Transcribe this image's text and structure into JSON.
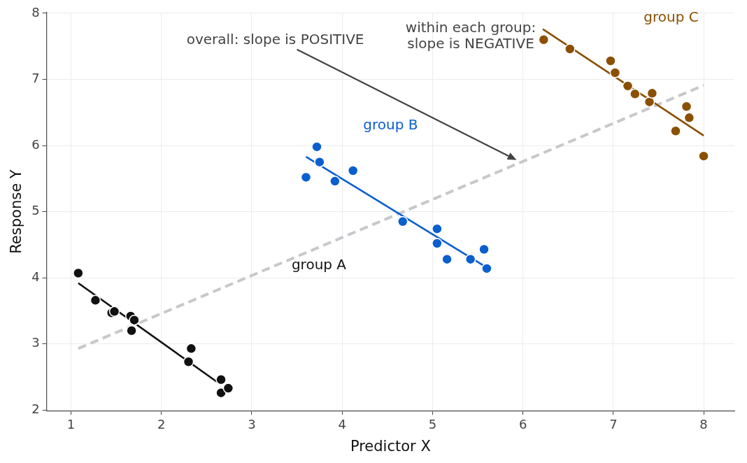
{
  "chart_data": {
    "type": "scatter",
    "xlabel": "Predictor X",
    "ylabel": "Response Y",
    "xlim": [
      0.73,
      8.34
    ],
    "ylim": [
      1.99,
      8.01
    ],
    "xticks": [
      1,
      2,
      3,
      4,
      5,
      6,
      7,
      8
    ],
    "yticks": [
      2,
      3,
      4,
      5,
      6,
      7,
      8
    ],
    "grid": true,
    "legend": false,
    "marker": "circle",
    "series": [
      {
        "name": "group A",
        "color": "#111111",
        "x": [
          1.08,
          1.27,
          1.45,
          1.48,
          1.66,
          1.67,
          1.7,
          2.3,
          2.33,
          2.66,
          2.66,
          2.74
        ],
        "values": [
          4.07,
          3.66,
          3.47,
          3.49,
          3.42,
          3.2,
          3.36,
          2.73,
          2.93,
          2.46,
          2.26,
          2.33
        ]
      },
      {
        "name": "group B",
        "color": "#0a5fcf",
        "x": [
          3.6,
          3.72,
          3.75,
          3.92,
          4.12,
          4.67,
          5.05,
          5.05,
          5.16,
          5.42,
          5.57,
          5.6
        ],
        "values": [
          5.52,
          5.98,
          5.75,
          5.46,
          5.62,
          4.85,
          4.74,
          4.52,
          4.28,
          4.28,
          4.43,
          4.14
        ]
      },
      {
        "name": "group C",
        "color": "#8a5000",
        "x": [
          6.23,
          6.52,
          6.97,
          7.02,
          7.16,
          7.24,
          7.4,
          7.43,
          7.69,
          7.81,
          7.84,
          8.0
        ],
        "values": [
          7.6,
          7.46,
          7.28,
          7.1,
          6.9,
          6.78,
          6.66,
          6.79,
          6.22,
          6.59,
          6.42,
          5.84
        ]
      },
      {
        "type": "line",
        "marker": "none",
        "color": "#111111",
        "x": [
          1.08,
          2.62
        ],
        "values": [
          3.92,
          2.42
        ]
      },
      {
        "type": "line",
        "marker": "none",
        "color": "#0a5fcf",
        "x": [
          3.6,
          5.57
        ],
        "values": [
          5.83,
          4.18
        ]
      },
      {
        "type": "line",
        "marker": "none",
        "color": "#8a5000",
        "x": [
          6.22,
          8.0
        ],
        "values": [
          7.76,
          6.15
        ]
      },
      {
        "type": "line",
        "marker": "none",
        "color": "#c8c8cc",
        "line_style": "dashed",
        "x": [
          1.08,
          8.0
        ],
        "values": [
          2.93,
          6.91
        ]
      }
    ],
    "annotations": [
      {
        "text": "overall: slope is POSITIVE",
        "x": 5.93,
        "y": 5.78
      },
      "within each group:\nslope is NEGATIVE"
    ]
  }
}
